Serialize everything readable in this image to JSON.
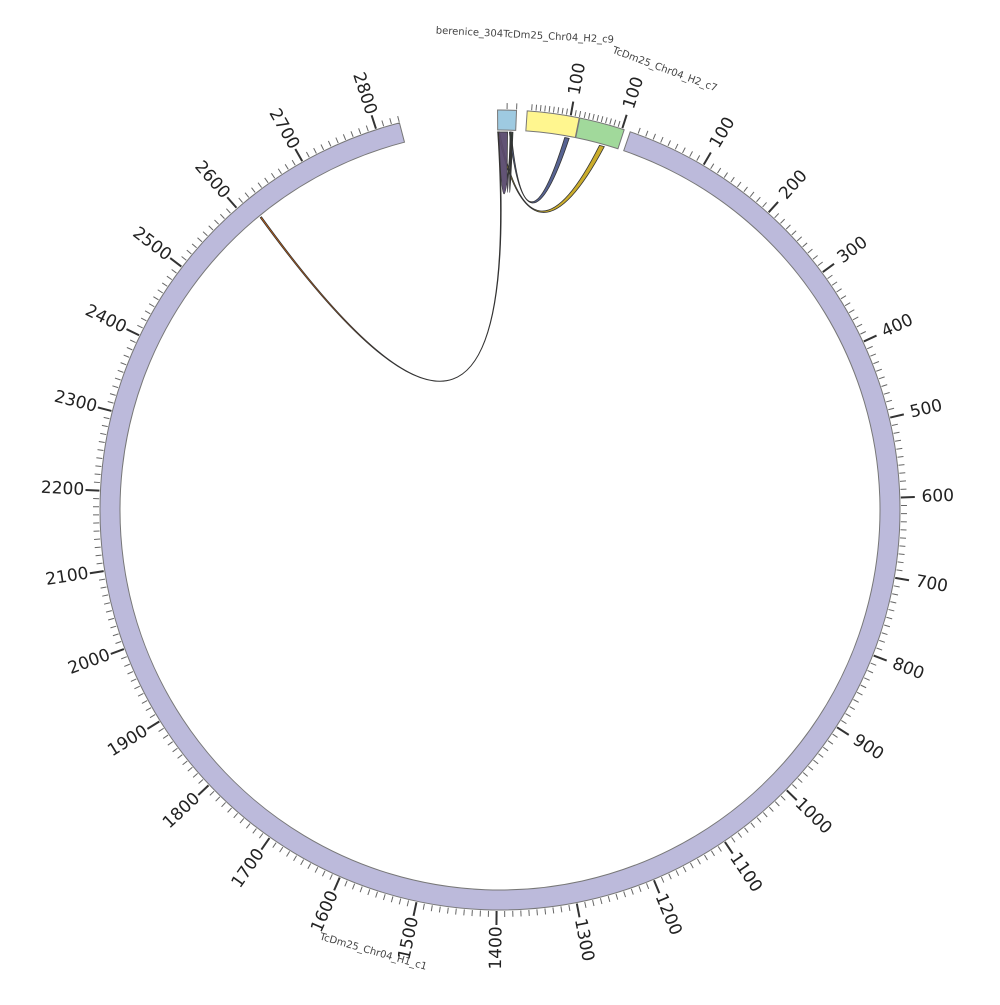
{
  "chart_data": {
    "type": "chord",
    "segments": [
      {
        "name": "TcDm25_Chr04_H1_c1",
        "length": 2830,
        "color": "#bcbadb",
        "tick_labels": [
          "100",
          "200",
          "300",
          "400",
          "500",
          "600",
          "700",
          "800",
          "900",
          "1000",
          "1100",
          "1200",
          "1300",
          "1400",
          "1500",
          "1600",
          "1700",
          "1800",
          "1900",
          "2000",
          "2100",
          "2200",
          "2300",
          "2400",
          "2500",
          "2600",
          "2700",
          "2800"
        ]
      },
      {
        "name": "TcDm25_Chr04_H2_c7",
        "length": 105,
        "color": "#a1d99b",
        "tick_labels": [
          "100"
        ]
      },
      {
        "name": "",
        "length": 120,
        "color": "#fff68f",
        "tick_labels": [
          "100"
        ]
      },
      {
        "name": "berenice_304TcDm25_Chr04_H2_c9",
        "length": 20,
        "color": "#9ecae1",
        "tick_labels": []
      }
    ],
    "links": [
      {
        "from_segment": 0,
        "from": [
          2615,
          2617
        ],
        "to_segment": 3,
        "to": [
          0,
          1
        ],
        "color": "#d95f02"
      },
      {
        "from_segment": 1,
        "from": [
          60,
          72
        ],
        "to_segment": 3,
        "to": [
          0,
          2
        ],
        "color": "#c8a921"
      },
      {
        "from_segment": 2,
        "from": [
          95,
          106
        ],
        "to_segment": 3,
        "to": [
          13,
          15
        ],
        "color": "#4e5b8c"
      },
      {
        "from_segment": 3,
        "from": [
          1,
          11
        ],
        "to_segment": 3,
        "to": [
          14,
          15
        ],
        "color": "#5a4a6e"
      },
      {
        "from_segment": 3,
        "from": [
          14,
          15
        ],
        "to_segment": 3,
        "to": [
          16,
          17
        ],
        "color": "#2ca25f"
      }
    ]
  }
}
